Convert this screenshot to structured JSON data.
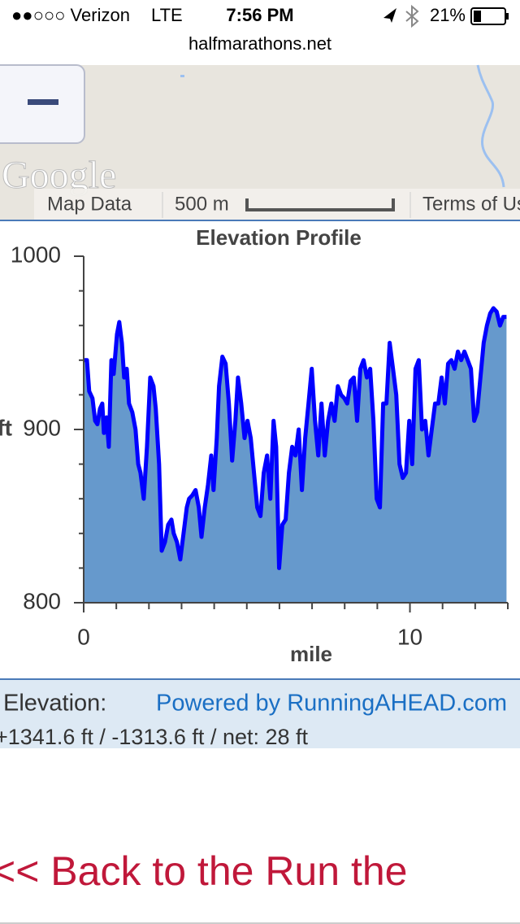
{
  "status_bar": {
    "carrier": "●●○○○ Verizon",
    "network": "LTE",
    "time": "7:56 PM",
    "battery": "21%"
  },
  "url": "halfmarathons.net",
  "map": {
    "logo": "Google",
    "map_data": "Map Data",
    "scale": "500 m",
    "terms": "Terms of Use"
  },
  "chart_data": {
    "type": "area",
    "title": "Elevation Profile",
    "x_label": "mile",
    "y_label": "ft",
    "x": [
      0,
      0.1,
      0.17,
      0.27,
      0.35,
      0.42,
      0.5,
      0.57,
      0.62,
      0.7,
      0.77,
      0.85,
      0.92,
      1.02,
      1.09,
      1.17,
      1.24,
      1.32,
      1.39,
      1.49,
      1.59,
      1.67,
      1.74,
      1.84,
      1.94,
      2.04,
      2.14,
      2.21,
      2.31,
      2.39,
      2.49,
      2.59,
      2.69,
      2.76,
      2.86,
      2.96,
      3.06,
      3.16,
      3.23,
      3.33,
      3.43,
      3.53,
      3.61,
      3.71,
      3.81,
      3.91,
      3.98,
      4.08,
      4.15,
      4.25,
      4.35,
      4.45,
      4.55,
      4.65,
      4.73,
      4.83,
      4.93,
      5.02,
      5.12,
      5.22,
      5.32,
      5.42,
      5.52,
      5.62,
      5.72,
      5.82,
      5.9,
      5.99,
      6.09,
      6.19,
      6.29,
      6.39,
      6.49,
      6.59,
      6.69,
      6.79,
      6.89,
      6.99,
      7.09,
      7.19,
      7.29,
      7.39,
      7.49,
      7.59,
      7.69,
      7.79,
      7.89,
      7.99,
      8.08,
      8.18,
      8.28,
      8.38,
      8.48,
      8.58,
      8.68,
      8.78,
      8.88,
      8.98,
      9.08,
      9.18,
      9.28,
      9.38,
      9.48,
      9.58,
      9.68,
      9.78,
      9.88,
      9.98,
      10.07,
      10.17,
      10.27,
      10.37,
      10.47,
      10.57,
      10.67,
      10.77,
      10.87,
      10.97,
      11.07,
      11.17,
      11.27,
      11.37,
      11.47,
      11.57,
      11.67,
      11.77,
      11.87,
      11.97,
      12.06,
      12.16,
      12.26,
      12.36,
      12.46,
      12.56,
      12.66,
      12.76,
      12.86,
      12.96
    ],
    "series": [
      {
        "name": "Elevation",
        "color": "#0000ff",
        "fill": "#6699cc",
        "values": [
          940,
          940,
          922,
          918,
          905,
          903,
          912,
          915,
          898,
          907,
          890,
          940,
          932,
          955,
          962,
          950,
          930,
          935,
          915,
          910,
          900,
          880,
          875,
          860,
          890,
          930,
          925,
          912,
          880,
          830,
          835,
          845,
          848,
          840,
          835,
          825,
          840,
          855,
          860,
          862,
          865,
          855,
          838,
          855,
          868,
          885,
          865,
          895,
          925,
          942,
          938,
          915,
          882,
          905,
          930,
          915,
          895,
          905,
          895,
          875,
          855,
          850,
          875,
          885,
          860,
          905,
          890,
          820,
          845,
          848,
          875,
          890,
          885,
          900,
          865,
          895,
          915,
          935,
          905,
          885,
          915,
          885,
          905,
          915,
          905,
          925,
          920,
          918,
          915,
          928,
          930,
          905,
          935,
          940,
          930,
          935,
          905,
          860,
          855,
          915,
          915,
          950,
          935,
          920,
          880,
          872,
          875,
          905,
          880,
          935,
          940,
          900,
          905,
          885,
          900,
          915,
          915,
          930,
          915,
          938,
          940,
          935,
          945,
          940,
          945,
          940,
          935,
          905,
          910,
          930,
          950,
          960,
          967,
          970,
          968,
          960,
          965,
          965
        ]
      }
    ],
    "xlim": [
      0,
      13
    ],
    "ylim": [
      800,
      1000
    ],
    "xticks": [
      0,
      10
    ],
    "yticks": [
      800,
      900,
      1000
    ],
    "xminor_ticks": [
      1,
      2,
      3,
      4,
      5,
      6,
      7,
      8,
      9,
      11,
      12,
      13
    ],
    "yminor_ticks": [
      820,
      840,
      860,
      880,
      920,
      940,
      960,
      980
    ]
  },
  "footer": {
    "elevation_label": "Elevation:",
    "powered_by": "Powered by RunningAHEAD.com",
    "summary": "+1341.6 ft / -1313.6 ft / net: 28 ft"
  },
  "back_link": "<< Back to the Run the"
}
